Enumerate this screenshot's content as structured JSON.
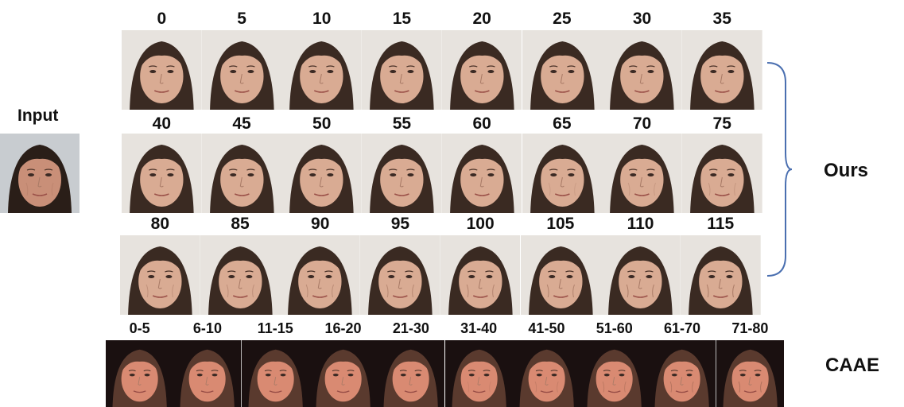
{
  "input_label": "Input",
  "ours_label": "Ours",
  "caae_label": "CAAE",
  "rows": [
    {
      "ages": [
        "0",
        "5",
        "10",
        "15",
        "20",
        "25",
        "30",
        "35"
      ]
    },
    {
      "ages": [
        "40",
        "45",
        "50",
        "55",
        "60",
        "65",
        "70",
        "75"
      ]
    },
    {
      "ages": [
        "80",
        "85",
        "90",
        "95",
        "100",
        "105",
        "110",
        "115"
      ]
    }
  ],
  "caae_ages": [
    "0-5",
    "6-10",
    "11-15",
    "16-20",
    "21-30",
    "31-40",
    "41-50",
    "51-60",
    "61-70",
    "71-80"
  ],
  "colors": {
    "hair": "#3a2a22",
    "skin_ours": "#d9ab93",
    "skin_caae": "#d98a72",
    "bg_ours": "#e7e3de",
    "bg_caae": "#1a1010",
    "brace": "#4a6fb0"
  }
}
